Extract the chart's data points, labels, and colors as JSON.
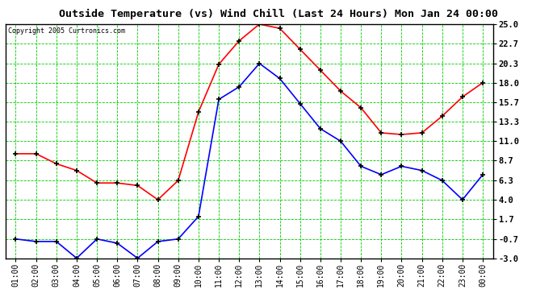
{
  "title": "Outside Temperature (vs) Wind Chill (Last 24 Hours) Mon Jan 24 00:00",
  "copyright": "Copyright 2005 Curtronics.com",
  "x_labels": [
    "01:00",
    "02:00",
    "03:00",
    "04:00",
    "05:00",
    "06:00",
    "07:00",
    "08:00",
    "09:00",
    "10:00",
    "11:00",
    "12:00",
    "13:00",
    "14:00",
    "15:00",
    "16:00",
    "17:00",
    "18:00",
    "19:00",
    "20:00",
    "21:00",
    "22:00",
    "23:00",
    "00:00"
  ],
  "red_data": [
    9.5,
    9.5,
    8.3,
    7.5,
    6.0,
    6.0,
    5.7,
    4.0,
    6.3,
    14.5,
    20.2,
    23.0,
    25.0,
    24.5,
    22.0,
    19.5,
    17.0,
    15.0,
    12.0,
    11.8,
    12.0,
    14.0,
    16.3,
    18.0
  ],
  "blue_data": [
    -0.7,
    -1.0,
    -1.0,
    -3.0,
    -0.7,
    -1.2,
    -3.0,
    -1.0,
    -0.7,
    2.0,
    16.0,
    17.5,
    20.3,
    18.5,
    15.5,
    12.5,
    11.0,
    8.0,
    7.0,
    8.0,
    7.5,
    6.3,
    4.0,
    7.0
  ],
  "ylim": [
    -3.0,
    25.0
  ],
  "yticks": [
    25.0,
    22.7,
    20.3,
    18.0,
    15.7,
    13.3,
    11.0,
    8.7,
    6.3,
    4.0,
    1.7,
    -0.7,
    -3.0
  ],
  "grid_color": "#00cc00",
  "red_color": "#ff0000",
  "blue_color": "#0000ff",
  "plot_bg": "#ffffff",
  "outer_bg": "#ffffff",
  "title_bg": "#ffffff",
  "border_color": "#000000"
}
